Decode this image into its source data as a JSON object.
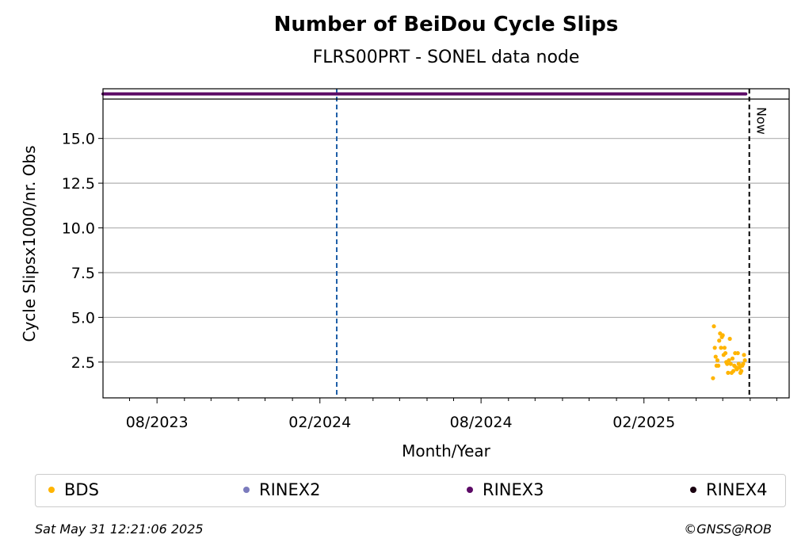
{
  "chart_data": {
    "type": "scatter",
    "title": "Number of BeiDou Cycle Slips",
    "subtitle": "FLRS00PRT - SONEL data node",
    "xlabel": "Month/Year",
    "ylabel": "Cycle Slipsx1000/nr. Obs",
    "x_axis": {
      "type": "date",
      "min": "2023-06-01",
      "max": "2025-07-15",
      "tick_labels": [
        "08/2023",
        "02/2024",
        "08/2024",
        "02/2025"
      ]
    },
    "y_axis": {
      "min": 0.5,
      "max": 17.2,
      "ticks": [
        2.5,
        5.0,
        7.5,
        10.0,
        12.5,
        15.0
      ],
      "tick_labels": [
        "2.5",
        "5.0",
        "7.5",
        "10.0",
        "12.5",
        "15.0"
      ]
    },
    "grid": "horizontal",
    "reference_lines": [
      {
        "date": "2024-02-20",
        "style": "dashed",
        "color": "#1f5fa8"
      },
      {
        "date": "2025-05-31",
        "style": "dashed",
        "color": "#000000",
        "label": "Now"
      }
    ],
    "series": [
      {
        "name": "BDS",
        "color": "#ffb400",
        "points": [
          [
            "2025-04-20",
            1.6
          ],
          [
            "2025-04-21",
            4.5
          ],
          [
            "2025-04-22",
            3.3
          ],
          [
            "2025-04-23",
            2.8
          ],
          [
            "2025-04-24",
            2.3
          ],
          [
            "2025-04-25",
            2.6
          ],
          [
            "2025-04-26",
            2.3
          ],
          [
            "2025-04-27",
            3.7
          ],
          [
            "2025-04-28",
            4.1
          ],
          [
            "2025-04-29",
            3.3
          ],
          [
            "2025-04-30",
            3.9
          ],
          [
            "2025-05-01",
            4.0
          ],
          [
            "2025-05-02",
            2.9
          ],
          [
            "2025-05-03",
            3.3
          ],
          [
            "2025-05-04",
            3.0
          ],
          [
            "2025-05-05",
            2.5
          ],
          [
            "2025-05-06",
            2.4
          ],
          [
            "2025-05-07",
            1.9
          ],
          [
            "2025-05-08",
            2.6
          ],
          [
            "2025-05-09",
            3.8
          ],
          [
            "2025-05-10",
            2.4
          ],
          [
            "2025-05-11",
            1.9
          ],
          [
            "2025-05-12",
            2.7
          ],
          [
            "2025-05-13",
            2.0
          ],
          [
            "2025-05-14",
            2.3
          ],
          [
            "2025-05-15",
            3.0
          ],
          [
            "2025-05-16",
            2.2
          ],
          [
            "2025-05-17",
            2.1
          ],
          [
            "2025-05-18",
            3.0
          ],
          [
            "2025-05-19",
            2.4
          ],
          [
            "2025-05-20",
            2.2
          ],
          [
            "2025-05-21",
            1.9
          ],
          [
            "2025-05-22",
            2.0
          ],
          [
            "2025-05-23",
            2.3
          ],
          [
            "2025-05-24",
            2.4
          ],
          [
            "2025-05-25",
            2.9
          ],
          [
            "2025-05-26",
            2.6
          ]
        ]
      },
      {
        "name": "RINEX2",
        "color": "#7b7bbd",
        "points": []
      },
      {
        "name": "RINEX3",
        "color": "#5c0a66",
        "coverage": [
          [
            "2023-06-01",
            "2024-09-12"
          ],
          [
            "2024-09-13",
            "2025-05-27"
          ]
        ]
      },
      {
        "name": "RINEX4",
        "color": "#1a0010",
        "points": []
      }
    ],
    "legend": {
      "placement": "bottom"
    }
  },
  "footer": {
    "timestamp": "Sat May 31 12:21:06 2025",
    "credit": "©GNSS@ROB"
  }
}
